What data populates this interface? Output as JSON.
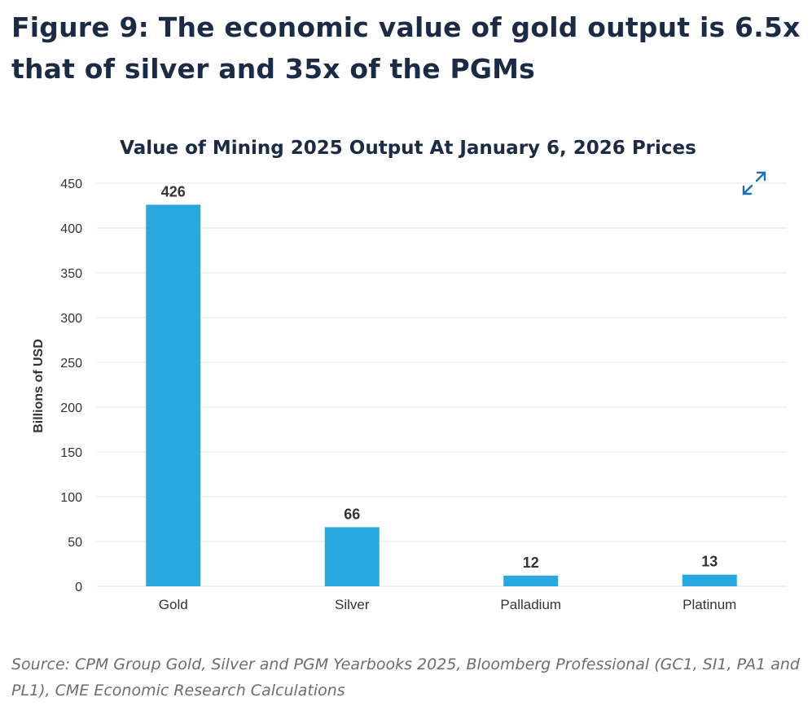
{
  "figure_title": "Figure 9: The economic value of gold output is 6.5x that of silver and 35x of the PGMs",
  "source_note": "Source: CPM Group Gold, Silver and PGM Yearbooks 2025, Bloomberg Professional (GC1, SI1, PA1 and PL1), CME Economic Research Calculations",
  "expand_icon": "expand-arrows-icon",
  "chart_data": {
    "type": "bar",
    "title": "Value of Mining 2025 Output At January 6, 2026 Prices",
    "xlabel": "",
    "ylabel": "Billions of USD",
    "categories": [
      "Gold",
      "Silver",
      "Palladium",
      "Platinum"
    ],
    "values": [
      426,
      66,
      12,
      13
    ],
    "value_labels": [
      "426",
      "66",
      "12",
      "13"
    ],
    "ylim": [
      0,
      450
    ],
    "yticks": [
      0,
      50,
      100,
      150,
      200,
      250,
      300,
      350,
      400,
      450
    ],
    "grid": true,
    "legend": "none",
    "bar_color": "#29a8e0"
  }
}
